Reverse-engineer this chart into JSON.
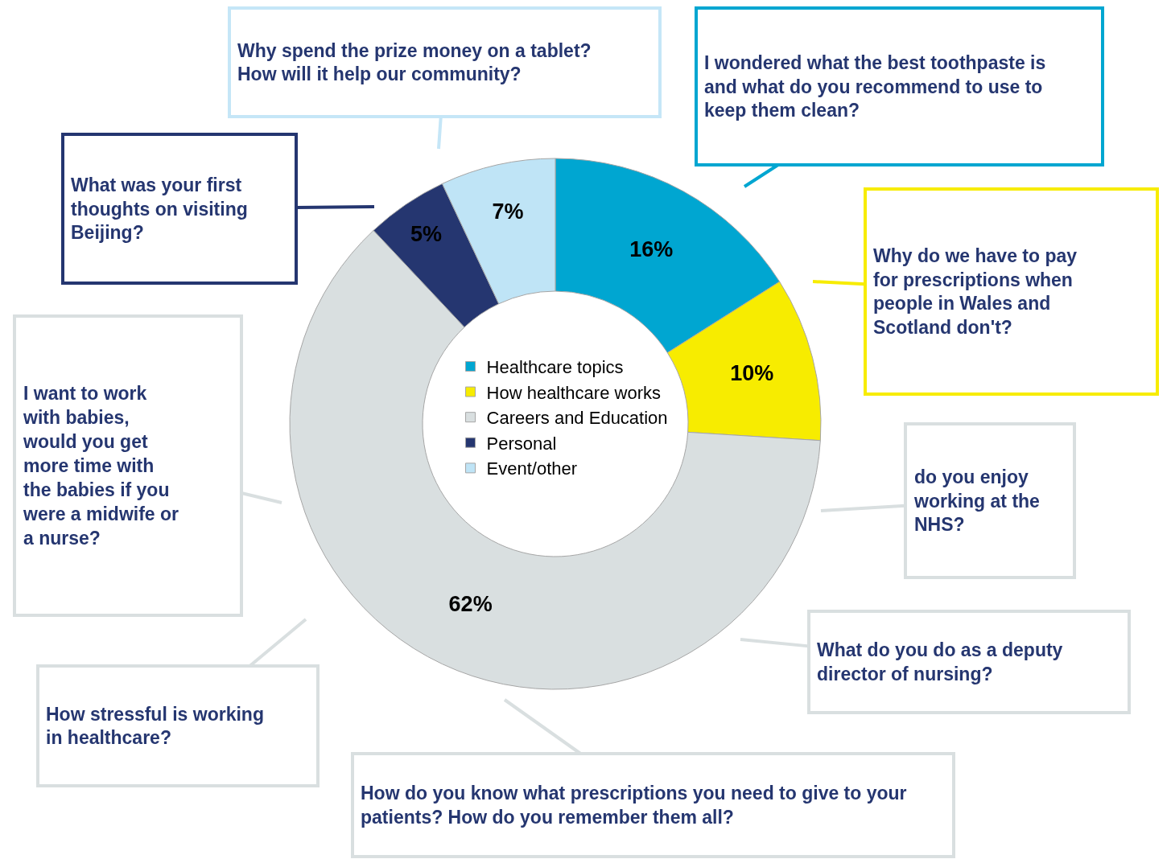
{
  "chart_data": {
    "type": "donut",
    "categories": [
      "Healthcare topics",
      "How healthcare works",
      "Careers and Education",
      "Personal",
      "Event/other"
    ],
    "values": [
      16,
      10,
      62,
      5,
      7
    ],
    "colors": [
      "#00a6d1",
      "#f7ec00",
      "#d9dfe0",
      "#253670",
      "#bfe4f6"
    ],
    "value_labels": [
      "16%",
      "10%",
      "62%",
      "5%",
      "7%"
    ],
    "legend": "center",
    "annotations": [
      "Why spend the prize money on a tablet? How will it help our community?",
      "I wondered what the best toothpaste is and what do you recommend to use to keep them clean?",
      "What was your first thoughts on visiting Beijing?",
      "Why do we have to pay for prescriptions when people in Wales and Scotland don't?",
      "I want to work with babies, would you get more time with the babies if you were a midwife or a nurse?",
      "do you enjoy working at the NHS?",
      "What do you do as a deputy director of nursing?",
      "How stressful is working in healthcare?",
      "How do you know what prescriptions you need to give to your patients? How do you remember them all?"
    ]
  }
}
